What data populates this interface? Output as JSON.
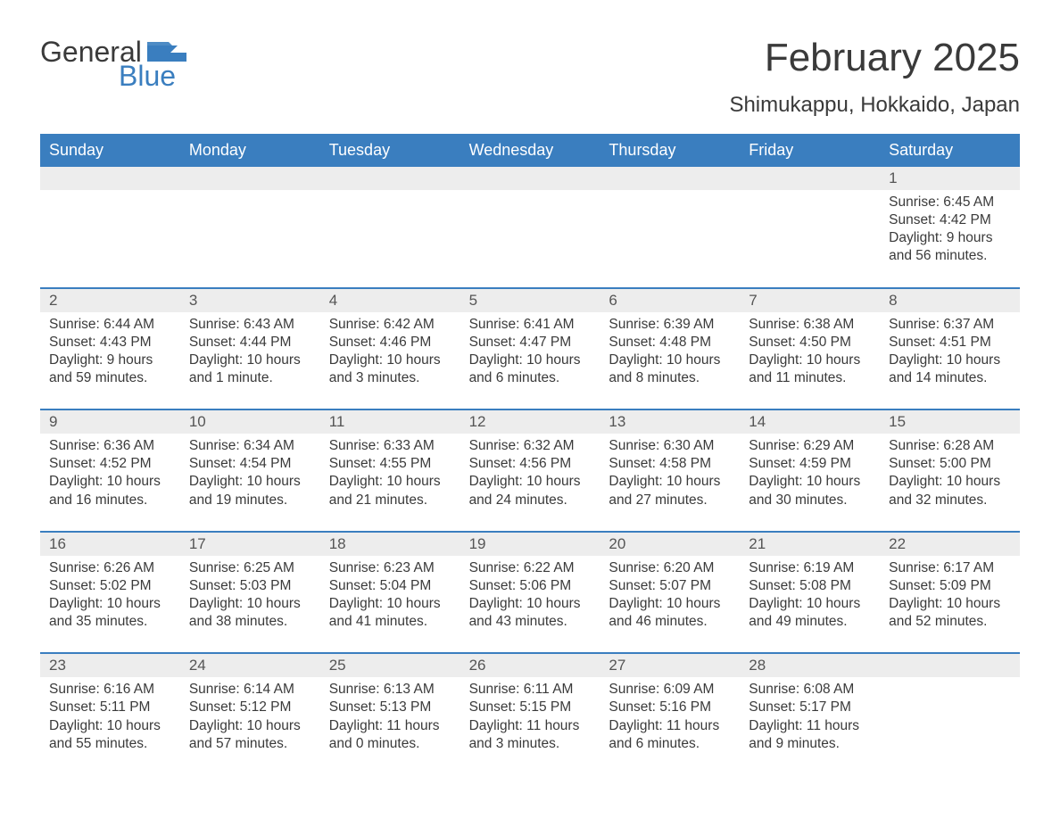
{
  "logo": {
    "text1": "General",
    "text2": "Blue",
    "flag_color": "#3a7ebf"
  },
  "title": "February 2025",
  "subtitle": "Shimukappu, Hokkaido, Japan",
  "colors": {
    "header_bg": "#3a7ebf",
    "header_text": "#ffffff",
    "row_divider": "#3a7ebf",
    "daynum_bg": "#ededed",
    "body_text": "#3a3a3a"
  },
  "day_names": [
    "Sunday",
    "Monday",
    "Tuesday",
    "Wednesday",
    "Thursday",
    "Friday",
    "Saturday"
  ],
  "weeks": [
    [
      null,
      null,
      null,
      null,
      null,
      null,
      {
        "n": "1",
        "sunrise": "Sunrise: 6:45 AM",
        "sunset": "Sunset: 4:42 PM",
        "d1": "Daylight: 9 hours",
        "d2": "and 56 minutes."
      }
    ],
    [
      {
        "n": "2",
        "sunrise": "Sunrise: 6:44 AM",
        "sunset": "Sunset: 4:43 PM",
        "d1": "Daylight: 9 hours",
        "d2": "and 59 minutes."
      },
      {
        "n": "3",
        "sunrise": "Sunrise: 6:43 AM",
        "sunset": "Sunset: 4:44 PM",
        "d1": "Daylight: 10 hours",
        "d2": "and 1 minute."
      },
      {
        "n": "4",
        "sunrise": "Sunrise: 6:42 AM",
        "sunset": "Sunset: 4:46 PM",
        "d1": "Daylight: 10 hours",
        "d2": "and 3 minutes."
      },
      {
        "n": "5",
        "sunrise": "Sunrise: 6:41 AM",
        "sunset": "Sunset: 4:47 PM",
        "d1": "Daylight: 10 hours",
        "d2": "and 6 minutes."
      },
      {
        "n": "6",
        "sunrise": "Sunrise: 6:39 AM",
        "sunset": "Sunset: 4:48 PM",
        "d1": "Daylight: 10 hours",
        "d2": "and 8 minutes."
      },
      {
        "n": "7",
        "sunrise": "Sunrise: 6:38 AM",
        "sunset": "Sunset: 4:50 PM",
        "d1": "Daylight: 10 hours",
        "d2": "and 11 minutes."
      },
      {
        "n": "8",
        "sunrise": "Sunrise: 6:37 AM",
        "sunset": "Sunset: 4:51 PM",
        "d1": "Daylight: 10 hours",
        "d2": "and 14 minutes."
      }
    ],
    [
      {
        "n": "9",
        "sunrise": "Sunrise: 6:36 AM",
        "sunset": "Sunset: 4:52 PM",
        "d1": "Daylight: 10 hours",
        "d2": "and 16 minutes."
      },
      {
        "n": "10",
        "sunrise": "Sunrise: 6:34 AM",
        "sunset": "Sunset: 4:54 PM",
        "d1": "Daylight: 10 hours",
        "d2": "and 19 minutes."
      },
      {
        "n": "11",
        "sunrise": "Sunrise: 6:33 AM",
        "sunset": "Sunset: 4:55 PM",
        "d1": "Daylight: 10 hours",
        "d2": "and 21 minutes."
      },
      {
        "n": "12",
        "sunrise": "Sunrise: 6:32 AM",
        "sunset": "Sunset: 4:56 PM",
        "d1": "Daylight: 10 hours",
        "d2": "and 24 minutes."
      },
      {
        "n": "13",
        "sunrise": "Sunrise: 6:30 AM",
        "sunset": "Sunset: 4:58 PM",
        "d1": "Daylight: 10 hours",
        "d2": "and 27 minutes."
      },
      {
        "n": "14",
        "sunrise": "Sunrise: 6:29 AM",
        "sunset": "Sunset: 4:59 PM",
        "d1": "Daylight: 10 hours",
        "d2": "and 30 minutes."
      },
      {
        "n": "15",
        "sunrise": "Sunrise: 6:28 AM",
        "sunset": "Sunset: 5:00 PM",
        "d1": "Daylight: 10 hours",
        "d2": "and 32 minutes."
      }
    ],
    [
      {
        "n": "16",
        "sunrise": "Sunrise: 6:26 AM",
        "sunset": "Sunset: 5:02 PM",
        "d1": "Daylight: 10 hours",
        "d2": "and 35 minutes."
      },
      {
        "n": "17",
        "sunrise": "Sunrise: 6:25 AM",
        "sunset": "Sunset: 5:03 PM",
        "d1": "Daylight: 10 hours",
        "d2": "and 38 minutes."
      },
      {
        "n": "18",
        "sunrise": "Sunrise: 6:23 AM",
        "sunset": "Sunset: 5:04 PM",
        "d1": "Daylight: 10 hours",
        "d2": "and 41 minutes."
      },
      {
        "n": "19",
        "sunrise": "Sunrise: 6:22 AM",
        "sunset": "Sunset: 5:06 PM",
        "d1": "Daylight: 10 hours",
        "d2": "and 43 minutes."
      },
      {
        "n": "20",
        "sunrise": "Sunrise: 6:20 AM",
        "sunset": "Sunset: 5:07 PM",
        "d1": "Daylight: 10 hours",
        "d2": "and 46 minutes."
      },
      {
        "n": "21",
        "sunrise": "Sunrise: 6:19 AM",
        "sunset": "Sunset: 5:08 PM",
        "d1": "Daylight: 10 hours",
        "d2": "and 49 minutes."
      },
      {
        "n": "22",
        "sunrise": "Sunrise: 6:17 AM",
        "sunset": "Sunset: 5:09 PM",
        "d1": "Daylight: 10 hours",
        "d2": "and 52 minutes."
      }
    ],
    [
      {
        "n": "23",
        "sunrise": "Sunrise: 6:16 AM",
        "sunset": "Sunset: 5:11 PM",
        "d1": "Daylight: 10 hours",
        "d2": "and 55 minutes."
      },
      {
        "n": "24",
        "sunrise": "Sunrise: 6:14 AM",
        "sunset": "Sunset: 5:12 PM",
        "d1": "Daylight: 10 hours",
        "d2": "and 57 minutes."
      },
      {
        "n": "25",
        "sunrise": "Sunrise: 6:13 AM",
        "sunset": "Sunset: 5:13 PM",
        "d1": "Daylight: 11 hours",
        "d2": "and 0 minutes."
      },
      {
        "n": "26",
        "sunrise": "Sunrise: 6:11 AM",
        "sunset": "Sunset: 5:15 PM",
        "d1": "Daylight: 11 hours",
        "d2": "and 3 minutes."
      },
      {
        "n": "27",
        "sunrise": "Sunrise: 6:09 AM",
        "sunset": "Sunset: 5:16 PM",
        "d1": "Daylight: 11 hours",
        "d2": "and 6 minutes."
      },
      {
        "n": "28",
        "sunrise": "Sunrise: 6:08 AM",
        "sunset": "Sunset: 5:17 PM",
        "d1": "Daylight: 11 hours",
        "d2": "and 9 minutes."
      },
      null
    ]
  ]
}
